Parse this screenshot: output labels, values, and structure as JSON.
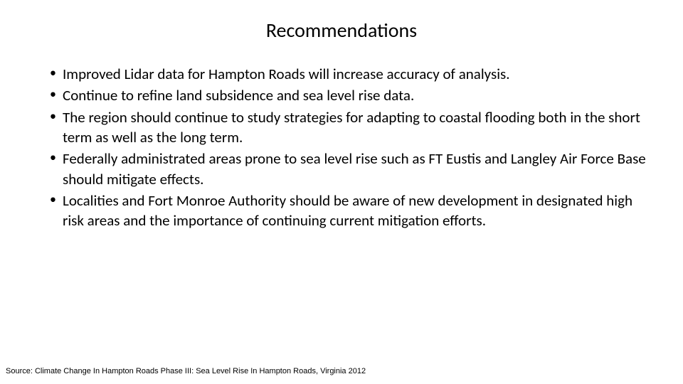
{
  "title": "Recommendations",
  "title_fontsize": 28,
  "title_color": "#000000",
  "body_fontsize": 21,
  "body_color": "#000000",
  "background_color": "#ffffff",
  "bullets": [
    "Improved Lidar data for Hampton Roads will increase accuracy of analysis.",
    "Continue to refine land subsidence and sea level rise data.",
    "The region should continue to study strategies for adapting to coastal flooding both in the short term as well as the long term.",
    "Federally administrated areas prone to sea level rise such as FT Eustis and Langley Air Force Base should mitigate effects.",
    "Localities and Fort Monroe Authority should be aware of new development in designated high risk areas and the importance of continuing current mitigation efforts."
  ],
  "source": "Source: Climate Change In Hampton Roads Phase III: Sea Level Rise In Hampton Roads, Virginia 2012",
  "source_fontsize": 11
}
